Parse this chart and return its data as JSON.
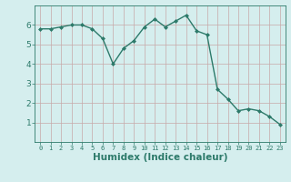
{
  "x": [
    0,
    1,
    2,
    3,
    4,
    5,
    6,
    7,
    8,
    9,
    10,
    11,
    12,
    13,
    14,
    15,
    16,
    17,
    18,
    19,
    20,
    21,
    22,
    23
  ],
  "y": [
    5.8,
    5.8,
    5.9,
    6.0,
    6.0,
    5.8,
    5.3,
    4.0,
    4.8,
    5.2,
    5.9,
    6.3,
    5.9,
    6.2,
    6.5,
    5.7,
    5.5,
    2.7,
    2.2,
    1.6,
    1.7,
    1.6,
    1.3,
    0.9
  ],
  "line_color": "#2d7a6a",
  "marker": "D",
  "marker_size": 2.0,
  "xlabel": "Humidex (Indice chaleur)",
  "xlabel_fontsize": 7.5,
  "xlim": [
    -0.5,
    23.5
  ],
  "ylim": [
    0,
    7
  ],
  "yticks": [
    1,
    2,
    3,
    4,
    5,
    6
  ],
  "xticks": [
    0,
    1,
    2,
    3,
    4,
    5,
    6,
    7,
    8,
    9,
    10,
    11,
    12,
    13,
    14,
    15,
    16,
    17,
    18,
    19,
    20,
    21,
    22,
    23
  ],
  "background_color": "#d5eeee",
  "grid_color": "#c8a8a8",
  "tick_color": "#2d7a6a",
  "line_width": 1.0,
  "tick_fontsize": 5.0,
  "ytick_fontsize": 6.5
}
